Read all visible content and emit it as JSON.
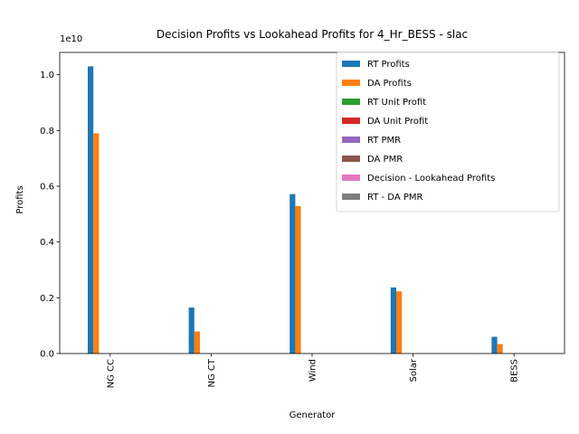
{
  "chart_data": {
    "type": "bar",
    "title": "Decision Profits vs Lookahead Profits for 4_Hr_BESS - slac",
    "xlabel": "Generator",
    "ylabel": "Profits",
    "offset_label": "1e10",
    "categories": [
      "NG CC",
      "NG CT",
      "Wind",
      "Solar",
      "BESS"
    ],
    "ylim": [
      0,
      10800000000
    ],
    "yticks": [
      0,
      2000000000,
      4000000000,
      6000000000,
      8000000000,
      10000000000
    ],
    "ytick_labels": [
      "0.0",
      "0.2",
      "0.4",
      "0.6",
      "0.8",
      "1.0"
    ],
    "legend_position": "upper-right",
    "series": [
      {
        "name": "RT Profits",
        "color": "#1f77b4",
        "values": [
          10300000000,
          1650000000,
          5720000000,
          2370000000,
          600000000
        ]
      },
      {
        "name": "DA Profits",
        "color": "#ff7f0e",
        "values": [
          7900000000,
          790000000,
          5290000000,
          2230000000,
          340000000
        ]
      },
      {
        "name": "RT Unit Profit",
        "color": "#2ca02c",
        "values": [
          0,
          0,
          0,
          0,
          0
        ]
      },
      {
        "name": "DA Unit Profit",
        "color": "#d62728",
        "values": [
          0,
          0,
          0,
          0,
          0
        ]
      },
      {
        "name": "RT PMR",
        "color": "#9467bd",
        "values": [
          0,
          0,
          0,
          0,
          0
        ]
      },
      {
        "name": "DA PMR",
        "color": "#8c564b",
        "values": [
          0,
          0,
          0,
          0,
          0
        ]
      },
      {
        "name": "Decision - Lookahead Profits",
        "color": "#e377c2",
        "values": [
          0,
          0,
          0,
          0,
          0
        ]
      },
      {
        "name": "RT - DA PMR",
        "color": "#7f7f7f",
        "values": [
          0,
          0,
          0,
          0,
          0
        ]
      }
    ]
  }
}
